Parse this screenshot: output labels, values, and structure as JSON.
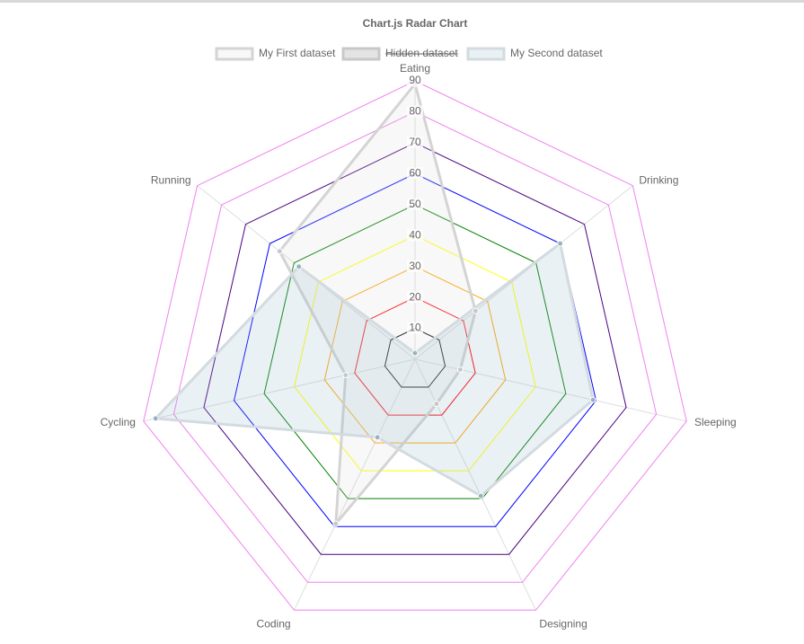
{
  "chart_data": {
    "type": "radar",
    "title": "Chart.js Radar Chart",
    "categories": [
      "Eating",
      "Drinking",
      "Sleeping",
      "Designing",
      "Coding",
      "Cycling",
      "Running"
    ],
    "series": [
      {
        "name": "My First dataset",
        "color": "#d4d4d4",
        "fill": "rgba(220,220,220,0.2)",
        "point_color": "#c8c8c8",
        "values": [
          89,
          25,
          15,
          16,
          59,
          23,
          56
        ]
      },
      {
        "name": "Hidden dataset",
        "color": "#c8c8c8",
        "fill": "rgba(200,200,200,0.5)",
        "hidden": true
      },
      {
        "name": "My Second dataset",
        "color": "#d3dbe0",
        "fill": "rgba(151,187,205,0.2)",
        "point_color": "#97b3c2",
        "values": [
          2,
          60,
          59,
          49,
          28,
          86,
          48
        ]
      }
    ],
    "ylim": [
      0,
      90
    ],
    "yticks": [
      10,
      20,
      30,
      40,
      50,
      60,
      70,
      80,
      90
    ],
    "grid_colors": [
      "black",
      "red",
      "orange",
      "yellow",
      "green",
      "blue",
      "indigo",
      "violet",
      "violet"
    ],
    "legend": "top"
  }
}
